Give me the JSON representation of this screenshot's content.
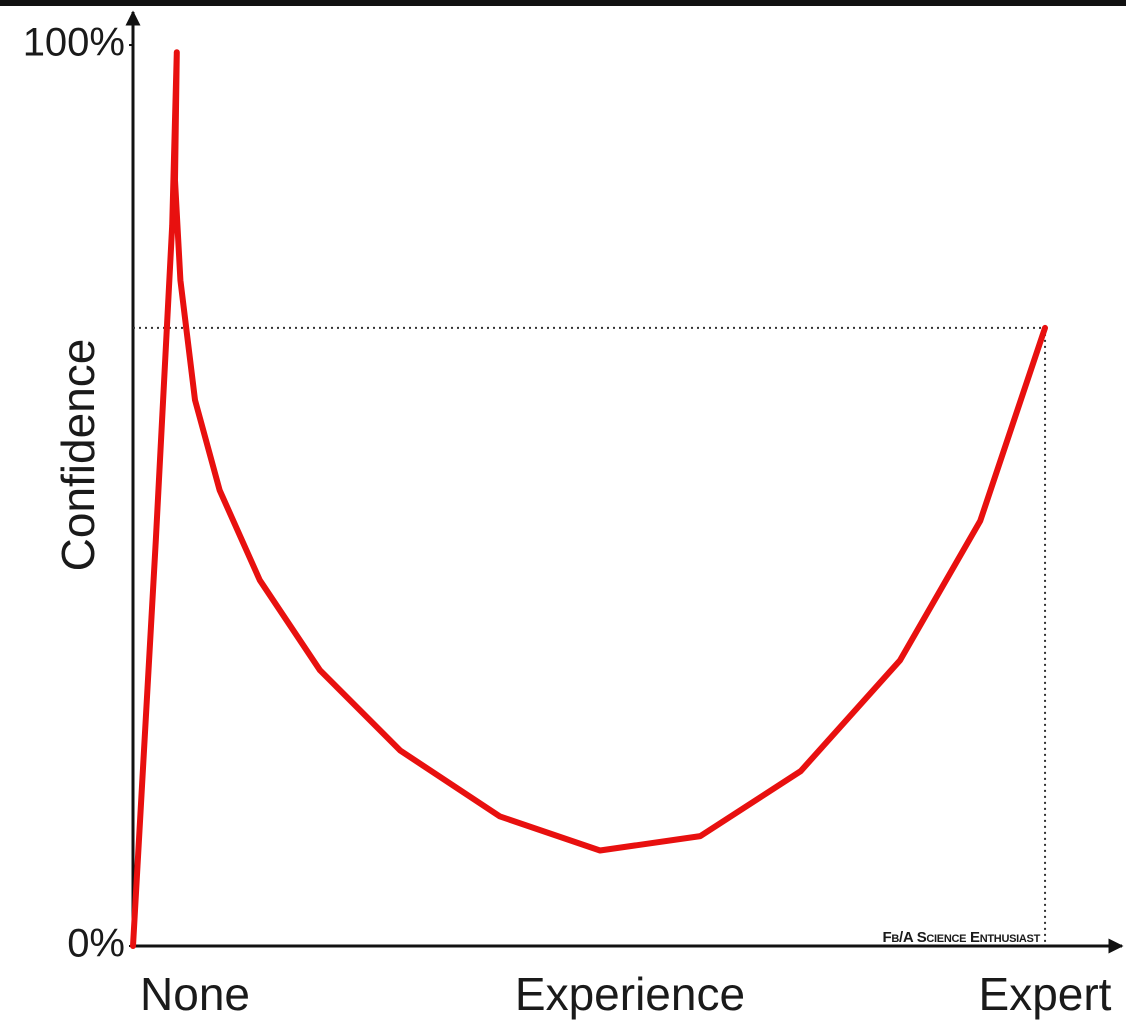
{
  "chart_data": {
    "type": "line",
    "ylabel": "Confidence",
    "xlabel": "Experience",
    "x_end_labels": [
      "None",
      "Expert"
    ],
    "watermark": "Fb/A Science Enthusiast",
    "xlim": [
      0,
      108
    ],
    "ylim": [
      0,
      103
    ],
    "yticks": [
      {
        "value": 0,
        "label": "0%"
      },
      {
        "value": 100,
        "label": "100%"
      }
    ],
    "grid": false,
    "series": [
      {
        "name": "Confidence",
        "color": "#e8100f",
        "x": [
          0,
          2.5,
          4.3,
          4.8,
          4.6,
          5.2,
          6.8,
          9.5,
          13.9,
          20.5,
          29.3,
          40.2,
          51.2,
          62.2,
          73.2,
          84.1,
          92.9,
          100
        ],
        "values": [
          0,
          45,
          80,
          99.2,
          85,
          73.9,
          60.6,
          50.6,
          40.6,
          30.6,
          21.7,
          14.4,
          10.6,
          12.2,
          19.4,
          31.7,
          47.2,
          68.6
        ]
      }
    ]
  }
}
